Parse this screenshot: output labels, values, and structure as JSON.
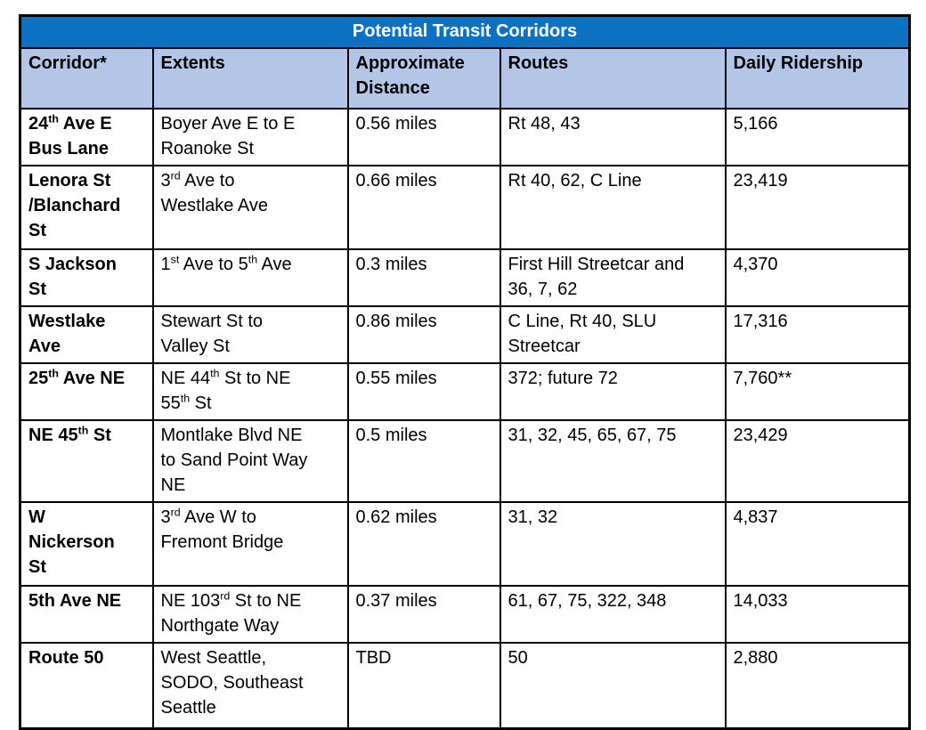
{
  "title": "Potential Transit Corridors",
  "columns": [
    "Corridor*",
    "Extents",
    "Approximate\nDistance",
    "Routes",
    "Daily Ridership"
  ],
  "rows": [
    {
      "corridor": "24^th^ Ave E\nBus Lane",
      "extents": "Boyer Ave E to E\nRoanoke St",
      "distance": "0.56 miles",
      "routes": "Rt 48, 43",
      "ridership": "5,166"
    },
    {
      "corridor": "Lenora St\n/Blanchard\nSt",
      "extents": "3^rd^ Ave to\nWestlake Ave",
      "distance": "0.66 miles",
      "routes": "Rt 40, 62, C Line",
      "ridership": "23,419"
    },
    {
      "corridor": "S Jackson\nSt",
      "extents": "1^st^ Ave to 5^th^ Ave",
      "distance": "0.3 miles",
      "routes": "First Hill Streetcar and\n36, 7, 62",
      "ridership": "4,370"
    },
    {
      "corridor": "Westlake\nAve",
      "extents": "Stewart St to\nValley St",
      "distance": "0.86 miles",
      "routes": "C Line, Rt 40, SLU\nStreetcar",
      "ridership": "17,316"
    },
    {
      "corridor": "25^th^ Ave NE",
      "extents": "NE 44^th^ St to NE\n55^th^ St",
      "distance": "0.55 miles",
      "routes": "372; future 72",
      "ridership": "7,760**"
    },
    {
      "corridor": "NE 45^th^ St",
      "extents": "Montlake Blvd NE\nto Sand Point Way\nNE",
      "distance": "0.5 miles",
      "routes": "31, 32, 45, 65, 67, 75",
      "ridership": "23,429"
    },
    {
      "corridor": "W\nNickerson\nSt",
      "extents": "3^rd^ Ave W to\nFremont Bridge",
      "distance": "0.62 miles",
      "routes": "31, 32",
      "ridership": "4,837"
    },
    {
      "corridor": "5th Ave NE",
      "extents": "NE 103^rd^ St to NE\nNorthgate Way",
      "distance": "0.37 miles",
      "routes": "61, 67, 75, 322, 348",
      "ridership": "14,033"
    },
    {
      "corridor": "Route 50",
      "extents": "West Seattle,\nSODO, Southeast\nSeattle",
      "distance": "TBD",
      "routes": "50",
      "ridership": "2,880"
    }
  ],
  "colors": {
    "title_bg": "#0d71c2",
    "title_text": "#ffffff",
    "header_bg": "#b4c6e7",
    "border": "#000000"
  }
}
